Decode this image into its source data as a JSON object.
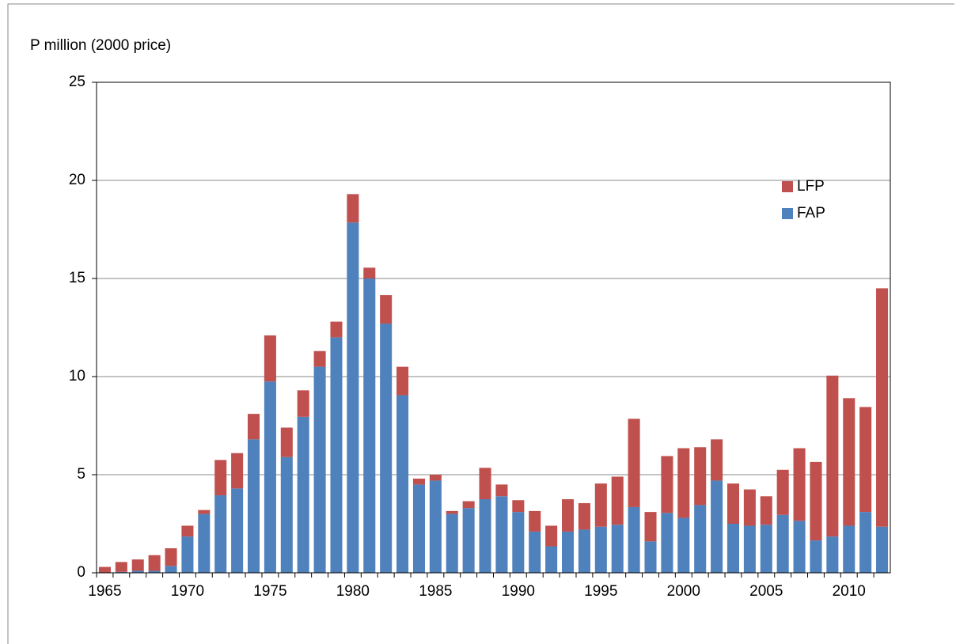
{
  "chart_data": {
    "type": "stacked_bar",
    "ylabel": "P million (2000 price)",
    "categories": [
      "1965",
      null,
      null,
      null,
      null,
      "1970",
      null,
      null,
      null,
      null,
      "1975",
      null,
      null,
      null,
      null,
      "1980",
      null,
      null,
      null,
      null,
      "1985",
      null,
      null,
      null,
      null,
      "1990",
      null,
      null,
      null,
      null,
      "1995",
      null,
      null,
      null,
      null,
      "2000",
      null,
      null,
      null,
      null,
      "2005",
      null,
      null,
      null,
      null,
      "2010",
      null,
      null
    ],
    "series": [
      {
        "name": "FAP",
        "color": "#4f81bd",
        "values": [
          0,
          0.05,
          0.1,
          0.1,
          0.35,
          1.85,
          3.0,
          3.95,
          4.3,
          6.8,
          9.75,
          5.9,
          7.95,
          10.5,
          12.0,
          17.85,
          15.0,
          12.7,
          9.05,
          4.5,
          4.7,
          3.0,
          3.3,
          3.75,
          3.9,
          3.1,
          2.1,
          1.35,
          2.1,
          2.2,
          2.35,
          2.45,
          3.35,
          1.6,
          3.05,
          2.8,
          3.45,
          4.7,
          2.5,
          2.4,
          2.45,
          2.95,
          2.65,
          1.65,
          1.85,
          2.4,
          3.1,
          2.35
        ]
      },
      {
        "name": "LFP",
        "color": "#c0504d",
        "values": [
          0.3,
          0.5,
          0.58,
          0.8,
          0.9,
          0.55,
          0.2,
          1.8,
          1.8,
          1.3,
          2.35,
          1.5,
          1.35,
          0.8,
          0.8,
          1.45,
          0.55,
          1.45,
          1.45,
          0.3,
          0.3,
          0.15,
          0.35,
          1.6,
          0.6,
          0.6,
          1.05,
          1.05,
          1.65,
          1.35,
          2.2,
          2.45,
          4.5,
          1.5,
          2.9,
          3.55,
          2.95,
          2.1,
          2.05,
          1.85,
          1.45,
          2.3,
          3.7,
          4.0,
          8.2,
          6.5,
          5.35,
          12.15
        ]
      }
    ],
    "ylim": [
      0,
      25
    ],
    "yticks": [
      0,
      5,
      10,
      15,
      20,
      25
    ],
    "grid": true
  }
}
